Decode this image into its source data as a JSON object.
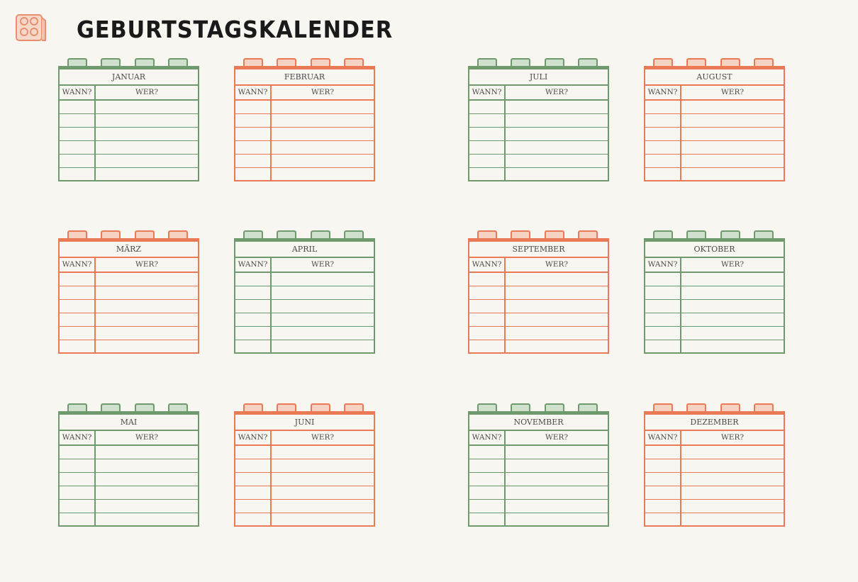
{
  "title": "GEBURTSTAGSKALENDER",
  "logo": "brick-icon",
  "colors": {
    "green": "#6e9a6e",
    "orange": "#ea7a55",
    "background": "#f8f6f0"
  },
  "column_headers": {
    "when": "WANN?",
    "who": "WER?"
  },
  "months": [
    {
      "name": "JANUAR",
      "color": "green"
    },
    {
      "name": "FEBRUAR",
      "color": "orange"
    },
    {
      "name": "JULI",
      "color": "green"
    },
    {
      "name": "AUGUST",
      "color": "orange"
    },
    {
      "name": "MÄRZ",
      "color": "orange"
    },
    {
      "name": "APRIL",
      "color": "green"
    },
    {
      "name": "SEPTEMBER",
      "color": "orange"
    },
    {
      "name": "OKTOBER",
      "color": "green"
    },
    {
      "name": "MAI",
      "color": "green"
    },
    {
      "name": "JUNI",
      "color": "orange"
    },
    {
      "name": "NOVEMBER",
      "color": "green"
    },
    {
      "name": "DEZEMBER",
      "color": "orange"
    }
  ]
}
